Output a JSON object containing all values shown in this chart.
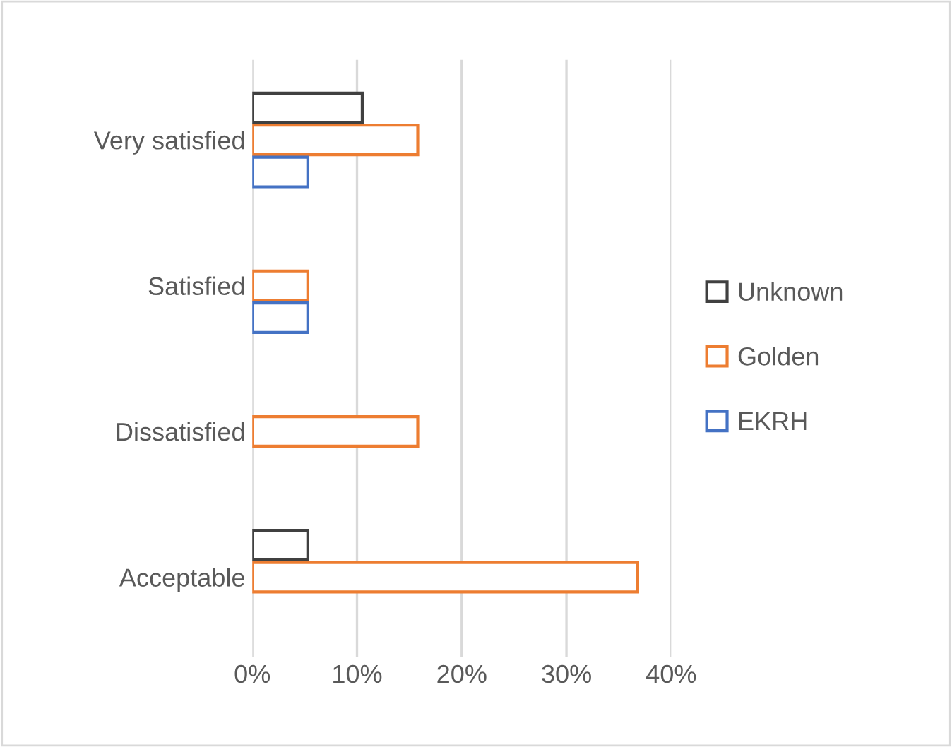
{
  "chart_data": {
    "type": "bar",
    "orientation": "horizontal",
    "categories": [
      "Very satisfied",
      "Satisfied",
      "Dissatisfied",
      "Acceptable"
    ],
    "series": [
      {
        "name": "Unknown",
        "color": "#404040",
        "values": [
          10.5,
          null,
          null,
          5.3
        ]
      },
      {
        "name": "Golden",
        "color": "#ed7d31",
        "values": [
          15.8,
          5.3,
          15.8,
          36.8
        ]
      },
      {
        "name": "EKRH",
        "color": "#4472c4",
        "values": [
          5.3,
          5.3,
          null,
          null
        ]
      }
    ],
    "xlim": [
      0,
      40
    ],
    "xticks": [
      {
        "value": 0,
        "label": "0%"
      },
      {
        "value": 10,
        "label": "10%"
      },
      {
        "value": 20,
        "label": "20%"
      },
      {
        "value": 30,
        "label": "30%"
      },
      {
        "value": 40,
        "label": "40%"
      }
    ],
    "grid": "x",
    "legend": "right"
  }
}
